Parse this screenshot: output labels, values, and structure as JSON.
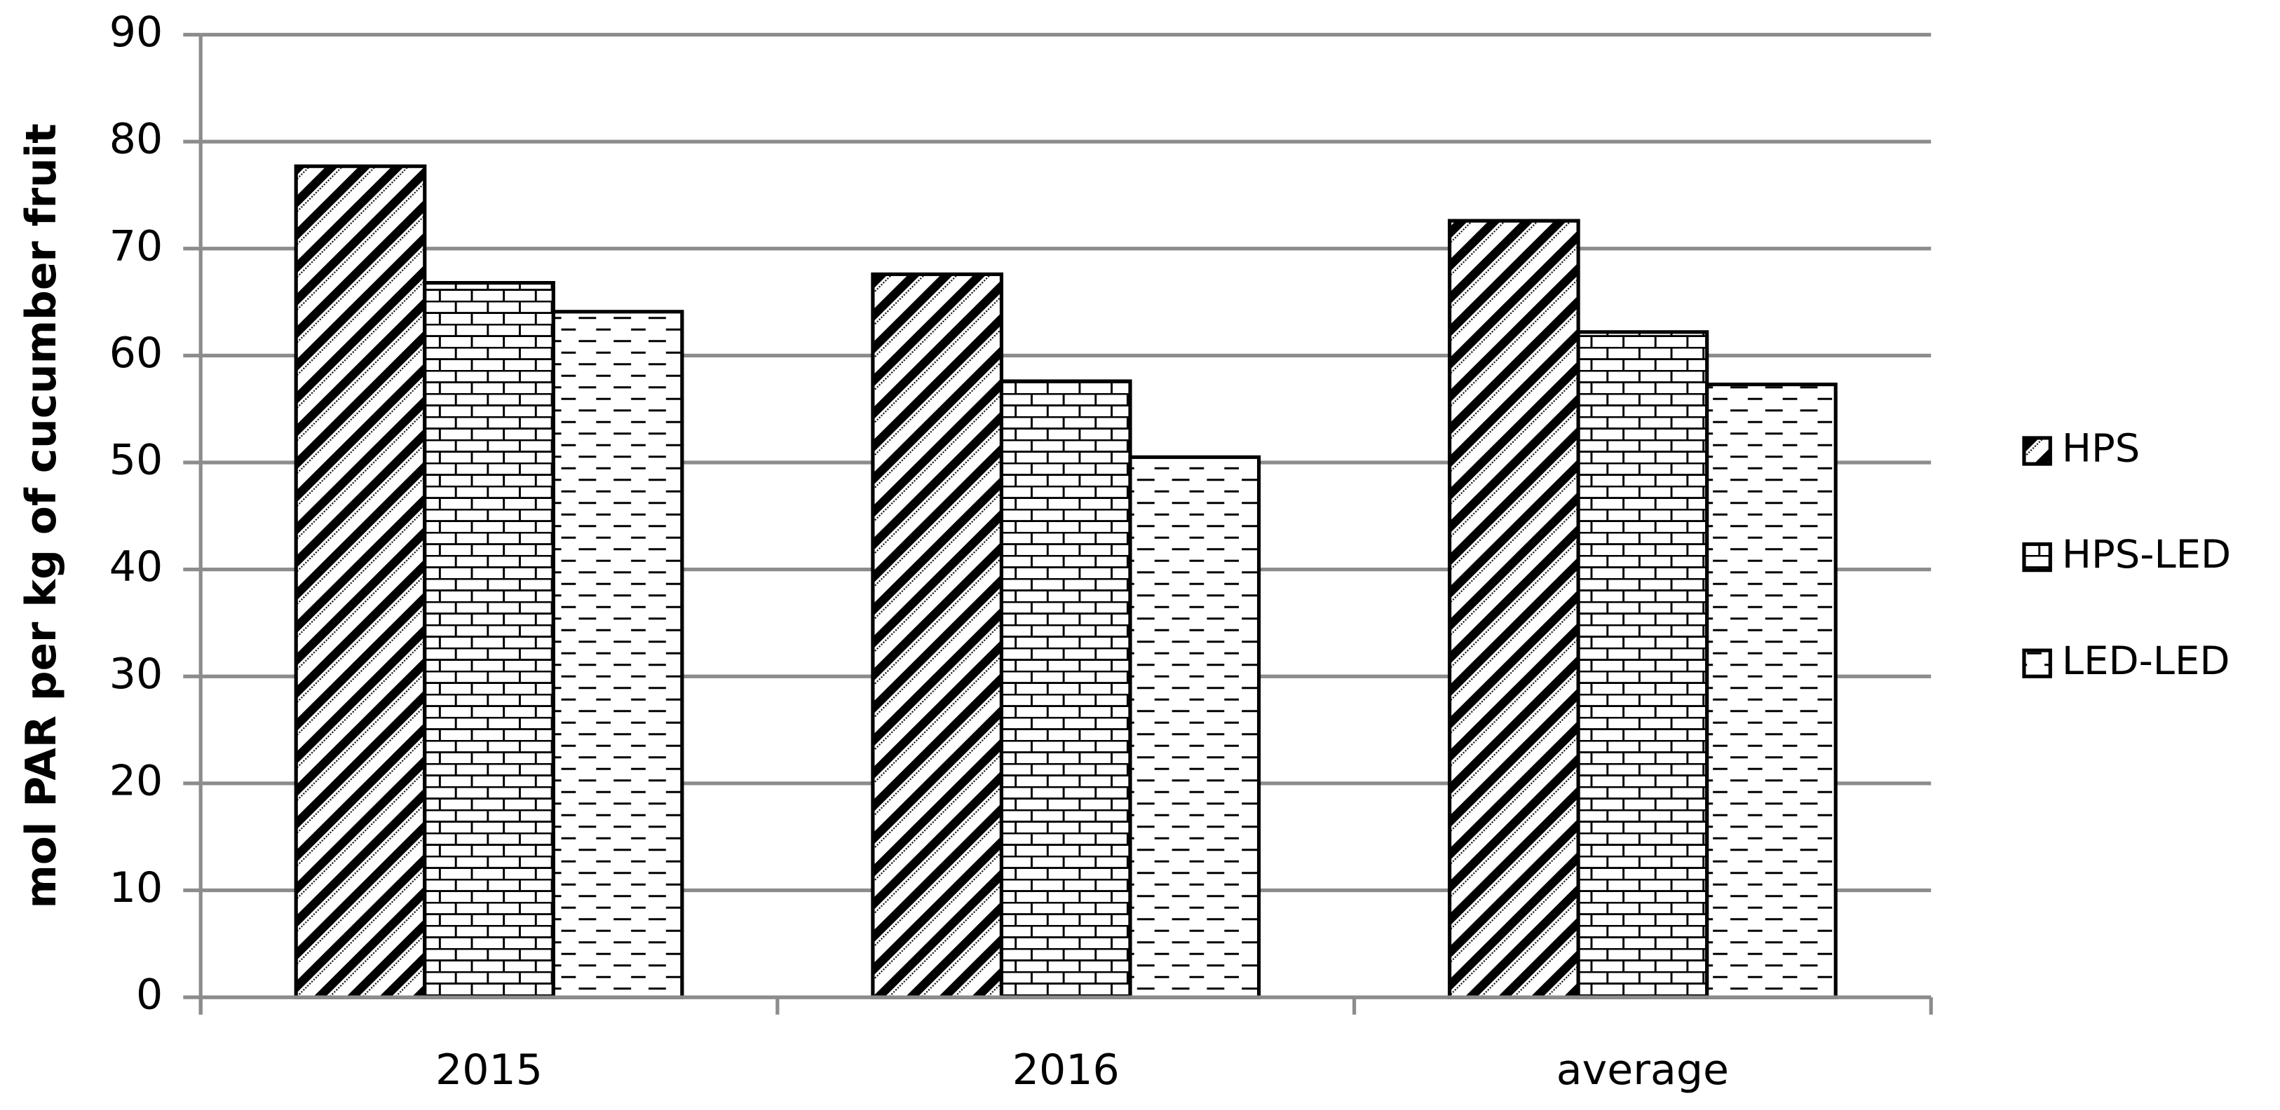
{
  "chart_data": {
    "type": "bar",
    "y_label": "mol PAR per kg of cucumber fruit",
    "categories": [
      "2015",
      "2016",
      "average"
    ],
    "series": [
      {
        "name": "HPS",
        "color": "#000000",
        "pattern": "diagonal",
        "values": [
          77.7,
          67.6,
          72.6
        ]
      },
      {
        "name": "HPS-LED",
        "color": "#000000",
        "pattern": "brick",
        "values": [
          66.8,
          57.6,
          62.2
        ]
      },
      {
        "name": "LED-LED",
        "color": "#000000",
        "pattern": "dash",
        "values": [
          64.1,
          50.5,
          57.3
        ]
      }
    ],
    "ylim": [
      0,
      90
    ],
    "yticks": [
      0,
      10,
      20,
      30,
      40,
      50,
      60,
      70,
      80,
      90
    ],
    "grid": true,
    "legend": "right"
  }
}
